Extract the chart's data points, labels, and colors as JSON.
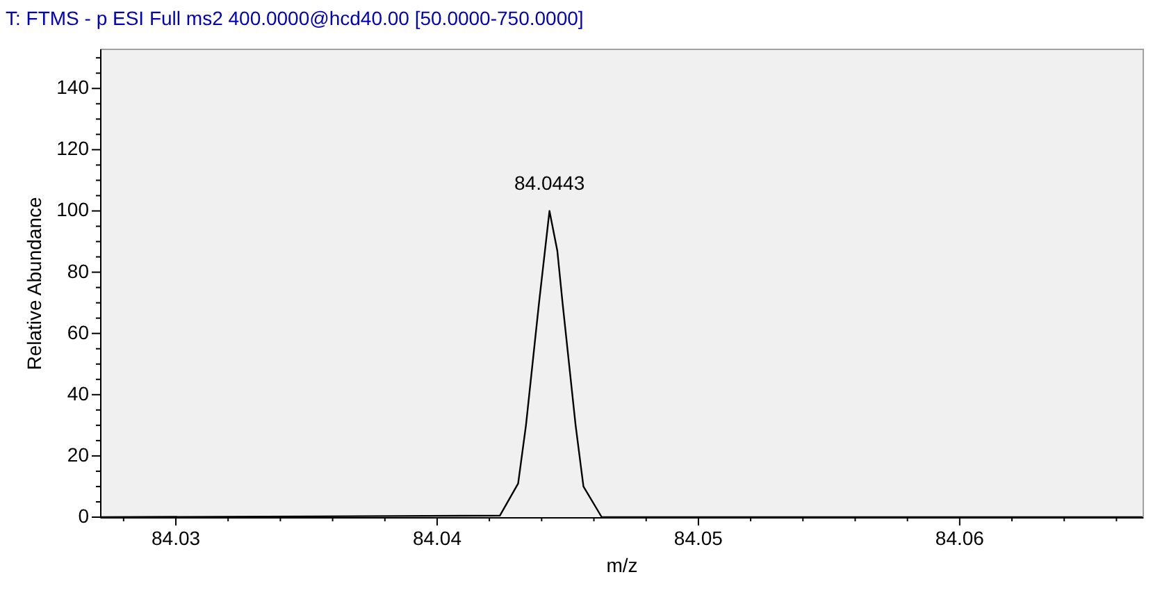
{
  "chart_data": {
    "type": "line",
    "title": "T: FTMS - p ESI Full ms2 400.0000@hcd40.00 [50.0000-750.0000]",
    "xlabel": "m/z",
    "ylabel": "Relative Abundance",
    "series": [
      {
        "color": "#000000",
        "x": [
          84.0271,
          84.0424,
          84.0431,
          84.0434,
          84.0437,
          84.0439,
          84.0443,
          84.0446,
          84.0448,
          84.045,
          84.0453,
          84.0456,
          84.0463,
          84.067
        ],
        "values": [
          0,
          0.5,
          11,
          30,
          54,
          70,
          100,
          87,
          70,
          54,
          30,
          10,
          0,
          0
        ]
      }
    ],
    "xlim": [
      84.0271,
      84.067
    ],
    "ylim": [
      0,
      153
    ],
    "xticks": [
      {
        "value": 84.028,
        "label": null
      },
      84.03,
      {
        "value": 84.032,
        "label": null
      },
      {
        "value": 84.034,
        "label": null
      },
      {
        "value": 84.036,
        "label": null
      },
      {
        "value": 84.038,
        "label": null
      },
      84.04,
      {
        "value": 84.042,
        "label": null
      },
      {
        "value": 84.044,
        "label": null
      },
      {
        "value": 84.046,
        "label": null
      },
      {
        "value": 84.048,
        "label": null
      },
      84.05,
      {
        "value": 84.052,
        "label": null
      },
      {
        "value": 84.054,
        "label": null
      },
      {
        "value": 84.056,
        "label": null
      },
      {
        "value": 84.058,
        "label": null
      },
      84.06,
      {
        "value": 84.062,
        "label": null
      },
      {
        "value": 84.064,
        "label": null
      },
      {
        "value": 84.066,
        "label": null
      }
    ],
    "yticks": [
      0,
      {
        "value": 5,
        "label": null
      },
      {
        "value": 10,
        "label": null
      },
      {
        "value": 15,
        "label": null
      },
      20,
      {
        "value": 25,
        "label": null
      },
      {
        "value": 30,
        "label": null
      },
      {
        "value": 35,
        "label": null
      },
      40,
      {
        "value": 45,
        "label": null
      },
      {
        "value": 50,
        "label": null
      },
      {
        "value": 55,
        "label": null
      },
      60,
      {
        "value": 65,
        "label": null
      },
      {
        "value": 70,
        "label": null
      },
      {
        "value": 75,
        "label": null
      },
      80,
      {
        "value": 85,
        "label": null
      },
      {
        "value": 90,
        "label": null
      },
      {
        "value": 95,
        "label": null
      },
      100,
      {
        "value": 105,
        "label": null
      },
      {
        "value": 110,
        "label": null
      },
      {
        "value": 115,
        "label": null
      },
      120,
      {
        "value": 125,
        "label": null
      },
      {
        "value": 130,
        "label": null
      },
      {
        "value": 135,
        "label": null
      },
      140,
      {
        "value": 145,
        "label": null
      },
      {
        "value": 150,
        "label": null
      }
    ],
    "annotations": [
      {
        "text": "84.0443",
        "x": 84.0443,
        "y": 100
      }
    ],
    "grid": false,
    "marker": "none",
    "line_style": "solid"
  }
}
